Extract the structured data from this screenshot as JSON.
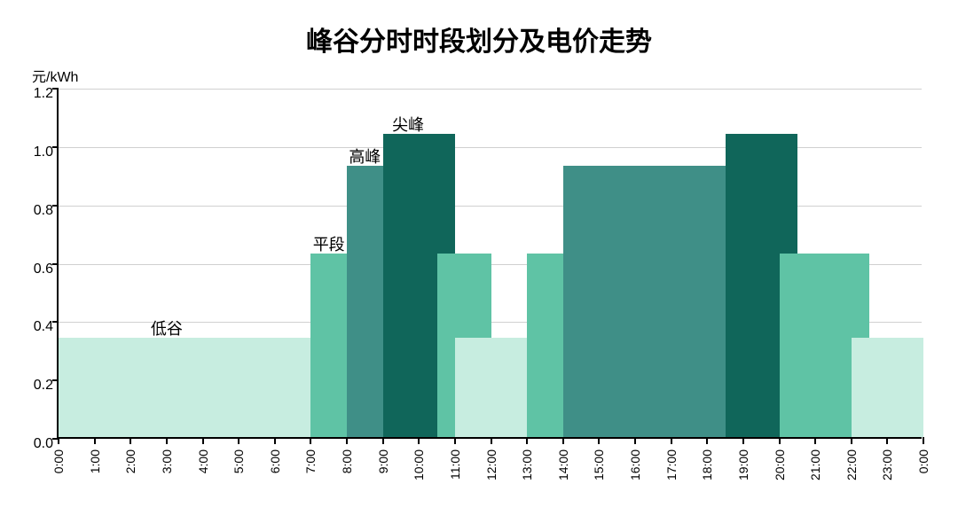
{
  "chart": {
    "type": "bar",
    "title": "峰谷分时时段划分及电价走势",
    "title_fontsize": 30,
    "y_axis_label": "元/kWh",
    "y_axis_label_fontsize": 16,
    "ylim": [
      0.0,
      1.2
    ],
    "ytick_step": 0.2,
    "y_ticks": [
      "0.0",
      "0.2",
      "0.4",
      "0.6",
      "0.8",
      "1.0",
      "1.2"
    ],
    "x_ticks": [
      "0:00",
      "1:00",
      "2:00",
      "3:00",
      "4:00",
      "5:00",
      "6:00",
      "7:00",
      "8:00",
      "9:00",
      "10:00",
      "11:00",
      "12:00",
      "13:00",
      "14:00",
      "15:00",
      "16:00",
      "17:00",
      "18:00",
      "19:00",
      "20:00",
      "21:00",
      "22:00",
      "23:00",
      "0:00"
    ],
    "x_label_fontsize": 14,
    "grid_color": "#d0d0d0",
    "background_color": "#ffffff",
    "axis_color": "#000000",
    "categories": {
      "valley": {
        "label": "低谷",
        "color": "#c7ede0",
        "value": 0.34
      },
      "flat": {
        "label": "平段",
        "color": "#5fc3a5",
        "value": 0.63
      },
      "peak": {
        "label": "高峰",
        "color": "#3f8f87",
        "value": 0.93
      },
      "sharp": {
        "label": "尖峰",
        "color": "#10665a",
        "value": 1.04
      }
    },
    "segments": [
      {
        "start_hour": 0,
        "end_hour": 7,
        "category": "valley"
      },
      {
        "start_hour": 7,
        "end_hour": 9,
        "category": "flat"
      },
      {
        "start_hour": 8,
        "end_hour": 10,
        "category": "peak"
      },
      {
        "start_hour": 9,
        "end_hour": 11,
        "category": "sharp"
      },
      {
        "start_hour": 10.5,
        "end_hour": 12,
        "category": "flat"
      },
      {
        "start_hour": 11,
        "end_hour": 13,
        "category": "valley"
      },
      {
        "start_hour": 13,
        "end_hour": 15,
        "category": "flat"
      },
      {
        "start_hour": 14,
        "end_hour": 19,
        "category": "peak"
      },
      {
        "start_hour": 18.5,
        "end_hour": 20.5,
        "category": "sharp"
      },
      {
        "start_hour": 20,
        "end_hour": 22.5,
        "category": "flat"
      },
      {
        "start_hour": 22,
        "end_hour": 24,
        "category": "valley"
      }
    ],
    "category_labels": [
      {
        "text_key": "valley",
        "hour_pos": 3.0,
        "y_above_value": 0.34
      },
      {
        "text_key": "flat",
        "hour_pos": 7.5,
        "y_above_value": 0.63
      },
      {
        "text_key": "peak",
        "hour_pos": 8.5,
        "y_above_value": 0.93
      },
      {
        "text_key": "sharp",
        "hour_pos": 9.7,
        "y_above_value": 1.04
      }
    ]
  }
}
